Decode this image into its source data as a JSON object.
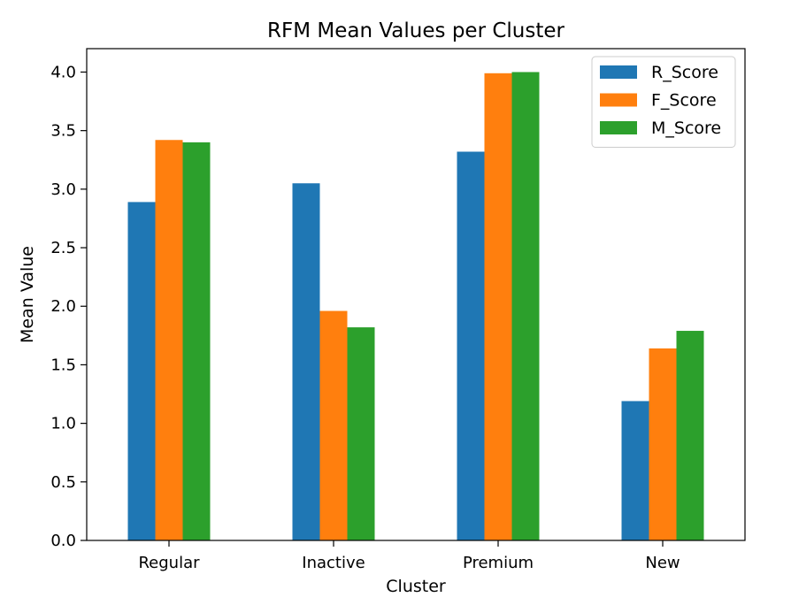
{
  "chart_data": {
    "type": "bar",
    "title": "RFM Mean Values per Cluster",
    "xlabel": "Cluster",
    "ylabel": "Mean Value",
    "categories": [
      "Regular",
      "Inactive",
      "Premium",
      "New"
    ],
    "series": [
      {
        "name": "R_Score",
        "color": "#1f77b4",
        "values": [
          2.89,
          3.05,
          3.32,
          1.19
        ]
      },
      {
        "name": "F_Score",
        "color": "#ff7f0e",
        "values": [
          3.42,
          1.96,
          3.99,
          1.64
        ]
      },
      {
        "name": "M_Score",
        "color": "#2ca02c",
        "values": [
          3.4,
          1.82,
          4.0,
          1.79
        ]
      }
    ],
    "ylim": [
      0,
      4.2
    ],
    "yticks": [
      "0.0",
      "0.5",
      "1.0",
      "1.5",
      "2.0",
      "2.5",
      "3.0",
      "3.5",
      "4.0"
    ],
    "grid": false,
    "legend_position": "top-right"
  }
}
